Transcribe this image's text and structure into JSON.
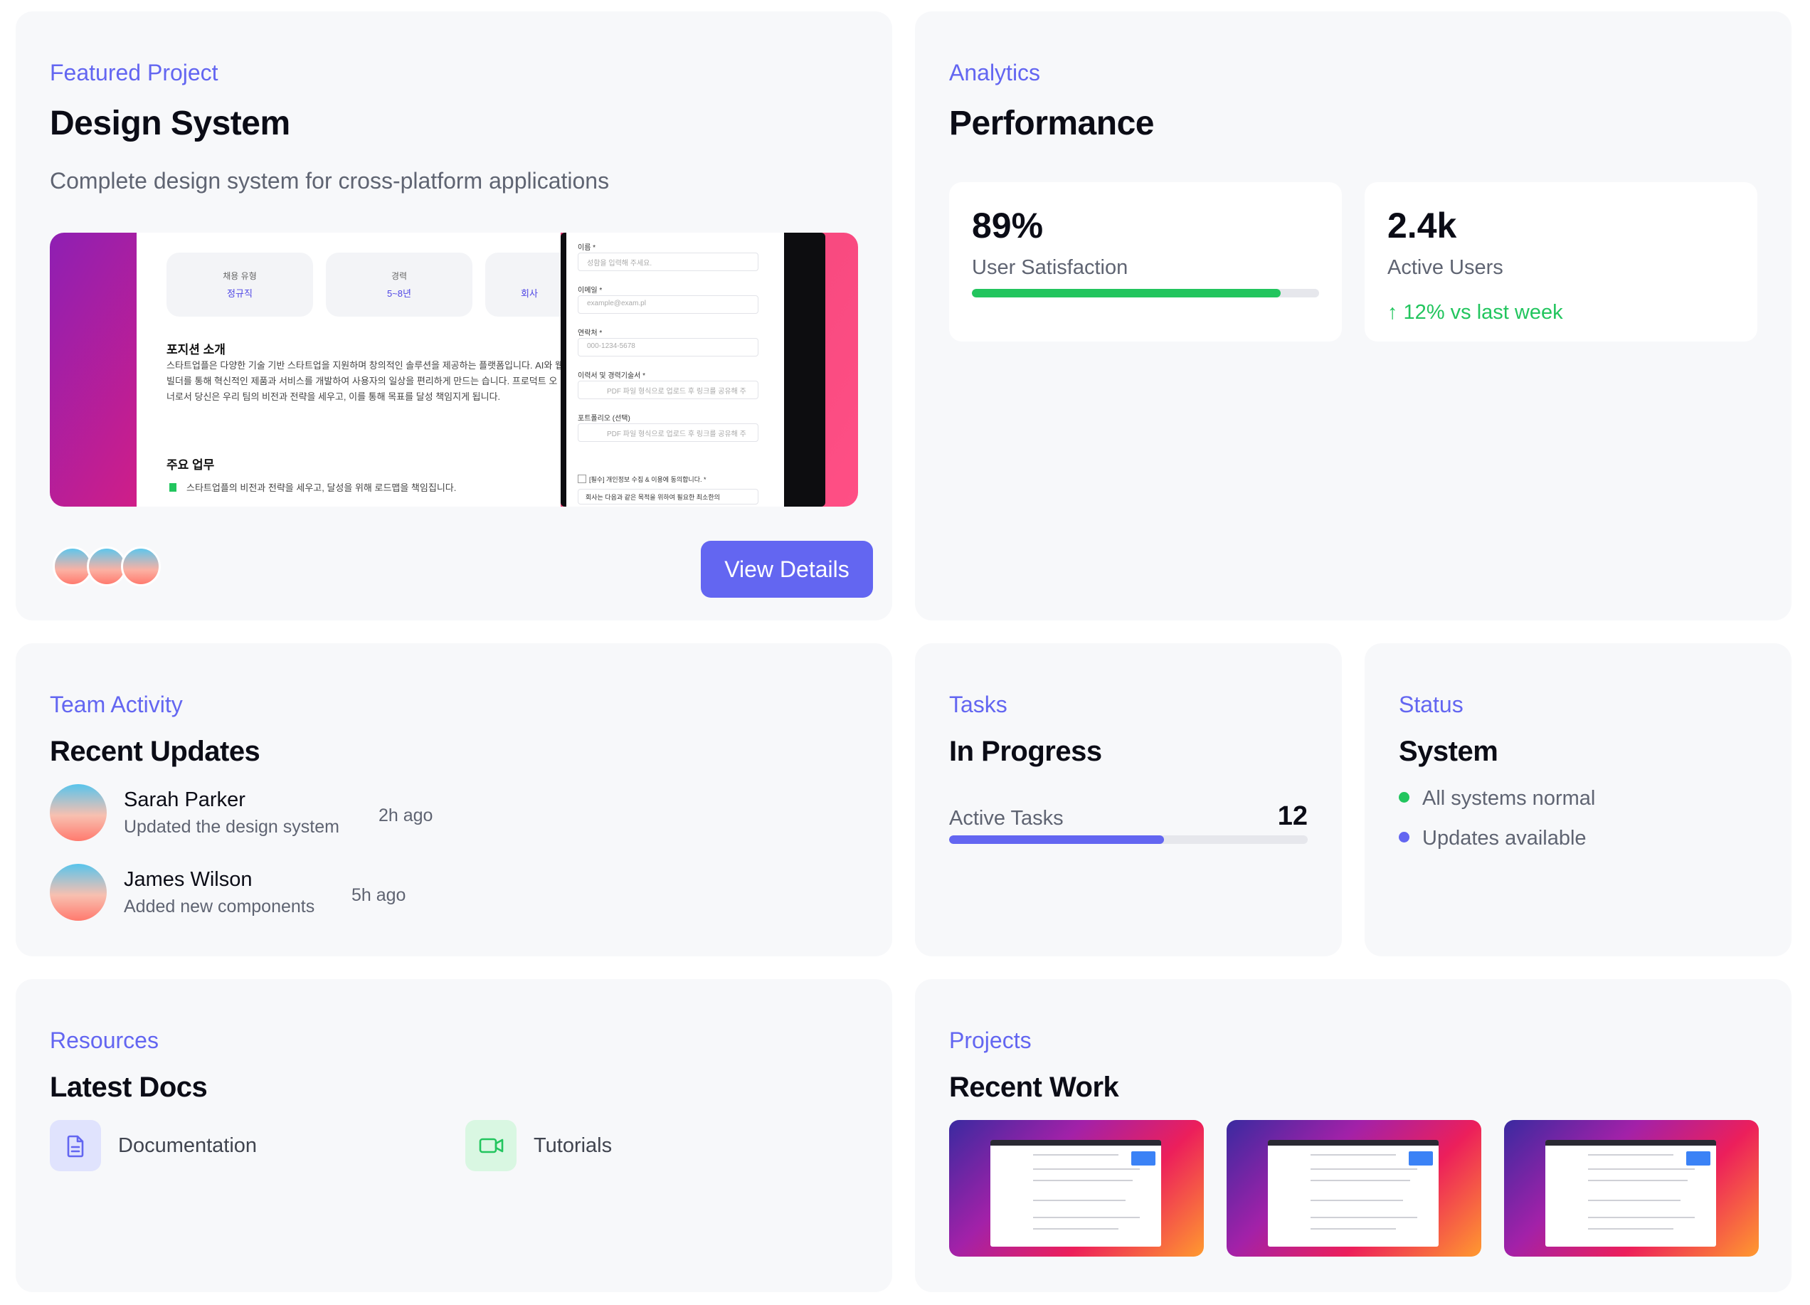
{
  "featured": {
    "eyebrow": "Featured Project",
    "title": "Design System",
    "subtitle": "Complete design system for cross-platform applications",
    "preview": {
      "pills": [
        {
          "label": "채용 유형",
          "value": "정규직"
        },
        {
          "label": "경력",
          "value": "5~8년"
        },
        {
          "label": "회사",
          "value": "회사"
        }
      ],
      "section1_title": "포지션 소개",
      "section1_body": "스타트업플은 다양한 기술 기반 스타트업을 지원하며 창의적인 솔루션을 제공하는 플랫폼입니다. AI와 웹 빌더를 통해 혁신적인 제품과 서비스를 개발하여 사용자의 일상을 편리하게 만드는 습니다. 프로덕트 오너로서 당신은 우리 팀의 비전과 전략을 세우고, 이를 통해 목표를 달성 책임지게 됩니다.",
      "section2_title": "주요 업무",
      "section2_item": "스타트업플의 비전과 전략을 세우고, 달성을 위해 로드맵을 책임집니다.",
      "form": [
        {
          "label": "이름 *",
          "placeholder": "성함을 입력해 주세요."
        },
        {
          "label": "이메일 *",
          "placeholder": "example@exam.pl"
        },
        {
          "label": "연락처 *",
          "placeholder": "000-1234-5678"
        },
        {
          "label": "이력서 및 경력기술서 *",
          "placeholder": "PDF 파일 형식으로 업로드 후 링크를 공유해 주"
        },
        {
          "label": "포트폴리오 (선택)",
          "placeholder": "PDF 파일 형식으로 업로드 후 링크를 공유해 주"
        }
      ],
      "consent": "[필수] 개인정보 수집 & 이용에 동의합니다. *",
      "consent_note": "회사는 다음과 같은 목적을 위하여 필요한 최소한의"
    },
    "button": "View Details"
  },
  "analytics": {
    "eyebrow": "Analytics",
    "title": "Performance",
    "satisfaction_value": "89%",
    "satisfaction_label": "User Satisfaction",
    "satisfaction_level": 0.89,
    "users_value": "2.4k",
    "users_label": "Active Users",
    "users_trend": "↑ 12% vs last week",
    "trend_color": "#22c55e"
  },
  "team": {
    "eyebrow": "Team Activity",
    "title": "Recent Updates",
    "items": [
      {
        "name": "Sarah Parker",
        "desc": "Updated the design system",
        "time": "2h ago"
      },
      {
        "name": "James Wilson",
        "desc": "Added new components",
        "time": "5h ago"
      }
    ]
  },
  "tasks": {
    "eyebrow": "Tasks",
    "title": "In Progress",
    "label": "Active Tasks",
    "count": "12",
    "progress": 0.6
  },
  "status": {
    "eyebrow": "Status",
    "title": "System",
    "items": [
      {
        "label": "All systems normal",
        "color": "#22c55e"
      },
      {
        "label": "Updates available",
        "color": "#6366f1"
      }
    ]
  },
  "resources": {
    "eyebrow": "Resources",
    "title": "Latest Docs",
    "items": [
      {
        "label": "Documentation",
        "icon": "document-icon"
      },
      {
        "label": "Tutorials",
        "icon": "video-icon"
      }
    ]
  },
  "projects": {
    "eyebrow": "Projects",
    "title": "Recent Work"
  },
  "colors": {
    "accent": "#6366f1",
    "success": "#22c55e"
  }
}
